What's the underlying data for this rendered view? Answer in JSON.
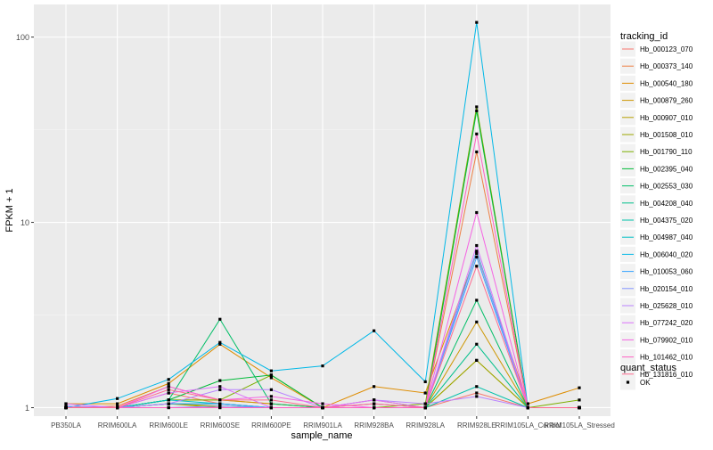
{
  "chart_data": {
    "type": "line",
    "xlabel": "sample_name",
    "ylabel": "FPKM + 1",
    "y_scale": "log10",
    "ylim": [
      0.9,
      150
    ],
    "y_ticks": [
      1,
      10,
      100
    ],
    "y_tick_labels": [
      "1",
      "10",
      "100"
    ],
    "grid": true,
    "categories": [
      "PB350LA",
      "RRIM600LA",
      "RRIM600LE",
      "RRIM600SE",
      "RRIM600PE",
      "RRIM901LA",
      "RRIM928BA",
      "RRIM928LA",
      "RRIM928LE",
      "RRIM105LA_Control",
      "RRIM105LA_Stressed"
    ],
    "legend_title": "tracking_id",
    "legend_position": "right",
    "series": [
      {
        "name": "Hb_000123_070",
        "color": "#F8766D",
        "values": [
          1.0,
          1.0,
          1.2,
          1.05,
          1.0,
          1.0,
          1.0,
          1.0,
          1.2,
          1.0,
          1.0
        ]
      },
      {
        "name": "Hb_000373_140",
        "color": "#EE8045",
        "values": [
          1.0,
          1.02,
          1.3,
          1.1,
          1.05,
          1.0,
          1.05,
          1.0,
          24,
          1.0,
          1.0
        ]
      },
      {
        "name": "Hb_000540_180",
        "color": "#DE8C00",
        "values": [
          1.05,
          1.05,
          1.35,
          2.2,
          1.45,
          1.0,
          1.3,
          1.2,
          6.8,
          1.05,
          1.28
        ]
      },
      {
        "name": "Hb_000879_260",
        "color": "#CD9600",
        "values": [
          1.0,
          1.0,
          1.1,
          1.1,
          1.05,
          1.0,
          1.1,
          1.0,
          2.9,
          1.0,
          1.0
        ]
      },
      {
        "name": "Hb_000907_010",
        "color": "#B79F00",
        "values": [
          1.0,
          1.0,
          1.05,
          1.0,
          1.0,
          1.0,
          1.0,
          1.0,
          1.8,
          1.0,
          1.0
        ]
      },
      {
        "name": "Hb_001508_010",
        "color": "#9CA700",
        "values": [
          1.0,
          1.0,
          1.05,
          1.02,
          1.0,
          1.0,
          1.0,
          1.0,
          1.8,
          1.0,
          1.0
        ]
      },
      {
        "name": "Hb_001790_110",
        "color": "#7CAE00",
        "values": [
          1.0,
          1.0,
          1.1,
          1.1,
          1.5,
          1.0,
          1.0,
          1.05,
          42,
          1.0,
          1.1
        ]
      },
      {
        "name": "Hb_002395_040",
        "color": "#00BA38",
        "values": [
          1.0,
          1.0,
          1.1,
          1.4,
          1.5,
          1.0,
          1.0,
          1.0,
          40,
          1.0,
          1.0
        ]
      },
      {
        "name": "Hb_002553_030",
        "color": "#00BE67",
        "values": [
          1.0,
          1.0,
          1.1,
          3.0,
          1.05,
          1.0,
          1.0,
          1.0,
          3.8,
          1.0,
          1.0
        ]
      },
      {
        "name": "Hb_004208_040",
        "color": "#00C08B",
        "values": [
          1.0,
          1.0,
          1.05,
          1.05,
          1.0,
          1.0,
          1.0,
          1.0,
          2.2,
          1.0,
          1.0
        ]
      },
      {
        "name": "Hb_004375_020",
        "color": "#00C1AA",
        "values": [
          1.0,
          1.0,
          1.0,
          1.0,
          1.0,
          1.0,
          1.0,
          1.0,
          1.3,
          1.0,
          1.0
        ]
      },
      {
        "name": "Hb_004987_040",
        "color": "#00BFC4",
        "values": [
          1.0,
          1.0,
          1.1,
          1.05,
          1.0,
          1.0,
          1.0,
          1.0,
          7.0,
          1.0,
          1.0
        ]
      },
      {
        "name": "Hb_006040_020",
        "color": "#00B8E7",
        "values": [
          1.0,
          1.12,
          1.42,
          2.25,
          1.58,
          1.68,
          2.6,
          1.38,
          120,
          1.0,
          1.0
        ]
      },
      {
        "name": "Hb_010053_060",
        "color": "#35A2FF",
        "values": [
          1.0,
          1.0,
          1.05,
          1.05,
          1.0,
          1.0,
          1.0,
          1.0,
          6.5,
          1.0,
          1.0
        ]
      },
      {
        "name": "Hb_020154_010",
        "color": "#8494FF",
        "values": [
          1.0,
          1.0,
          1.0,
          1.02,
          1.0,
          1.0,
          1.05,
          1.0,
          6.9,
          1.0,
          1.0
        ]
      },
      {
        "name": "Hb_025628_010",
        "color": "#B983FF",
        "values": [
          1.02,
          1.0,
          1.05,
          1.25,
          1.25,
          1.0,
          1.1,
          1.05,
          1.15,
          1.0,
          1.0
        ]
      },
      {
        "name": "Hb_077242_020",
        "color": "#DB72FB",
        "values": [
          1.05,
          1.0,
          1.2,
          1.3,
          1.0,
          1.0,
          1.1,
          1.0,
          7.5,
          1.0,
          1.0
        ]
      },
      {
        "name": "Hb_079902_010",
        "color": "#F564E3",
        "values": [
          1.0,
          1.0,
          1.3,
          1.1,
          1.15,
          1.05,
          1.0,
          1.0,
          11.3,
          1.0,
          1.0
        ]
      },
      {
        "name": "Hb_101462_010",
        "color": "#FF61C3",
        "values": [
          1.0,
          1.0,
          1.0,
          1.0,
          1.0,
          1.0,
          1.0,
          1.0,
          30,
          1.0,
          1.0
        ]
      },
      {
        "name": "Hb_131816_010",
        "color": "#FF6C91",
        "values": [
          1.0,
          1.0,
          1.25,
          1.1,
          1.1,
          1.0,
          1.05,
          1.0,
          5.8,
          1.0,
          1.0
        ]
      }
    ],
    "shape_legend": {
      "title": "quant_status",
      "items": [
        "OK"
      ]
    }
  }
}
